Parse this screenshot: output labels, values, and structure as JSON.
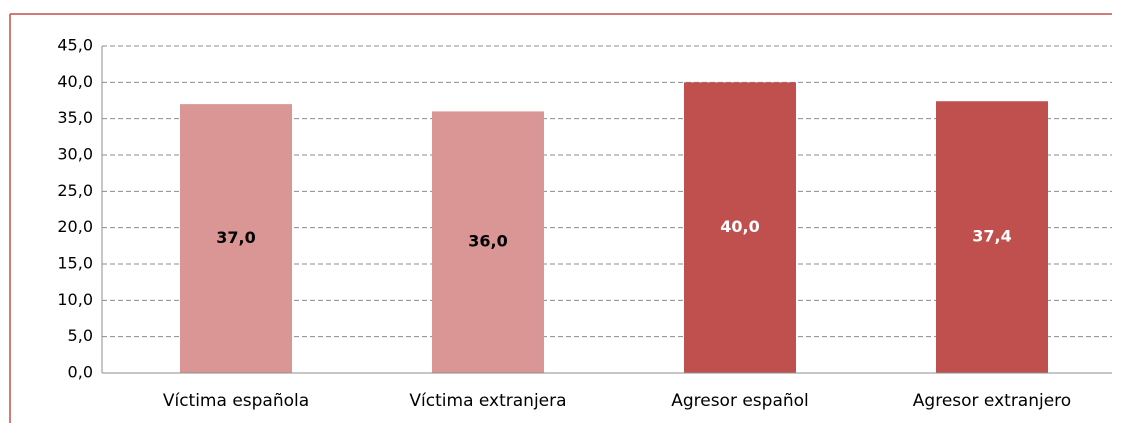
{
  "chart_data": {
    "type": "bar",
    "categories": [
      "Víctima española",
      "Víctima extranjera",
      "Agresor español",
      "Agresor extranjero"
    ],
    "values": [
      37.0,
      36.0,
      40.0,
      37.4
    ],
    "value_labels": [
      "37,0",
      "36,0",
      "40,0",
      "37,4"
    ],
    "colors": [
      "#d99694",
      "#d99694",
      "#c0504d",
      "#c0504d"
    ],
    "value_label_colors": [
      "#000000",
      "#000000",
      "#ffffff",
      "#ffffff"
    ],
    "ylim": [
      0,
      45
    ],
    "yticks": [
      {
        "value": 0,
        "label": "0,0"
      },
      {
        "value": 5,
        "label": "5,0"
      },
      {
        "value": 10,
        "label": "10,0"
      },
      {
        "value": 15,
        "label": "15,0"
      },
      {
        "value": 20,
        "label": "20,0"
      },
      {
        "value": 25,
        "label": "25,0"
      },
      {
        "value": 30,
        "label": "30,0"
      },
      {
        "value": 35,
        "label": "35,0"
      },
      {
        "value": 40,
        "label": "40,0"
      },
      {
        "value": 45,
        "label": "45,0"
      }
    ],
    "grid": true
  }
}
